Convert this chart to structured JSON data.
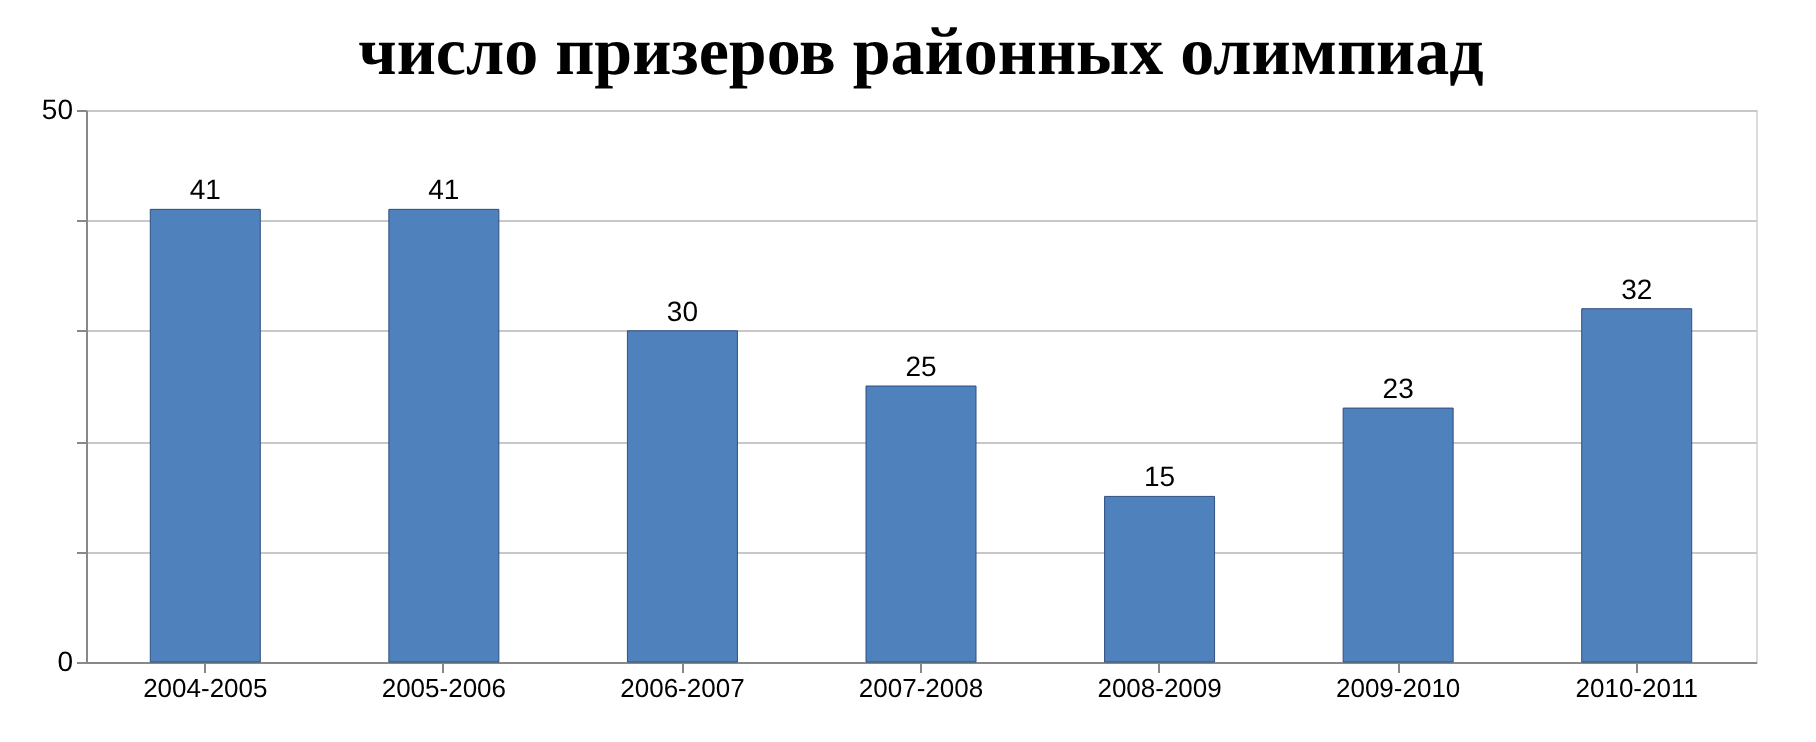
{
  "chart_data": {
    "type": "bar",
    "title": "число призеров районных олимпиад",
    "categories": [
      "2004-2005",
      "2005-2006",
      "2006-2007",
      "2007-2008",
      "2008-2009",
      "2009-2010",
      "2010-2011"
    ],
    "values": [
      41,
      41,
      30,
      25,
      15,
      23,
      32
    ],
    "color": "#4f81bd",
    "ylim": [
      0,
      50
    ],
    "yticks": [
      0,
      {
        "value": 10,
        "label": null
      },
      {
        "value": 20,
        "label": null
      },
      {
        "value": 30,
        "label": null
      },
      {
        "value": 40,
        "label": null
      },
      50
    ],
    "grid": "y",
    "data_labels": true
  }
}
